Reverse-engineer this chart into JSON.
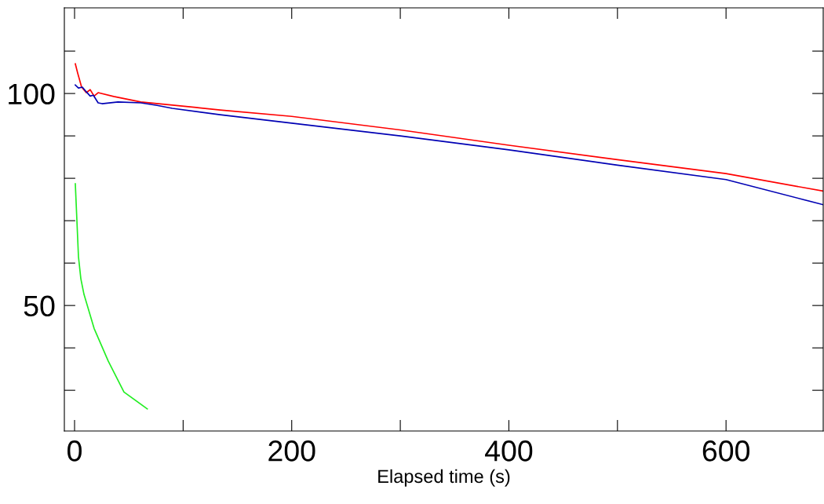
{
  "chart_data": {
    "type": "line",
    "xlabel": "Elapsed time (s)",
    "xlim": [
      -9.4,
      689.5
    ],
    "ylim": [
      20.4,
      120.2
    ],
    "xticks": [
      0,
      {
        "value": 100,
        "label": null
      },
      200,
      {
        "value": 300,
        "label": null
      },
      400,
      {
        "value": 500,
        "label": null
      },
      600
    ],
    "yticks": [
      {
        "value": 30,
        "label": null
      },
      {
        "value": 40,
        "label": null
      },
      50,
      {
        "value": 60,
        "label": null
      },
      {
        "value": 70,
        "label": null
      },
      {
        "value": 80,
        "label": null
      },
      {
        "value": 90,
        "label": null
      },
      100,
      {
        "value": 110,
        "label": null
      }
    ],
    "grid": false,
    "series": [
      {
        "color": "#ff0000",
        "x": [
          0.7,
          2.9,
          6.5,
          10.8,
          14.4,
          18,
          21.7,
          36,
          61,
          112,
          134,
          200,
          300,
          400,
          500,
          600,
          689
        ],
        "values": [
          107,
          104.8,
          101.5,
          100.2,
          100.9,
          99.4,
          100.2,
          99.3,
          98,
          96.7,
          96.1,
          94.6,
          91.4,
          87.8,
          84.4,
          81.1,
          77.0
        ]
      },
      {
        "color": "#0000b4",
        "x": [
          0.7,
          3.6,
          7.2,
          10.8,
          14.4,
          17.3,
          21.7,
          25.3,
          40,
          61,
          76,
          90,
          134,
          200,
          300,
          400,
          500,
          600,
          689
        ],
        "values": [
          102,
          101.3,
          101.5,
          100.4,
          99.4,
          99.6,
          97.8,
          97.6,
          98,
          97.8,
          97.2,
          96.5,
          95,
          93,
          90,
          86.7,
          83.1,
          79.7,
          73.8
        ]
      },
      {
        "color": "#22ee22",
        "x": [
          0.7,
          3.6,
          5.8,
          8.7,
          18,
          31,
          45.5,
          67
        ],
        "values": [
          78.7,
          61.5,
          56.3,
          52.6,
          44.6,
          36.9,
          29.6,
          25.6
        ]
      }
    ]
  }
}
